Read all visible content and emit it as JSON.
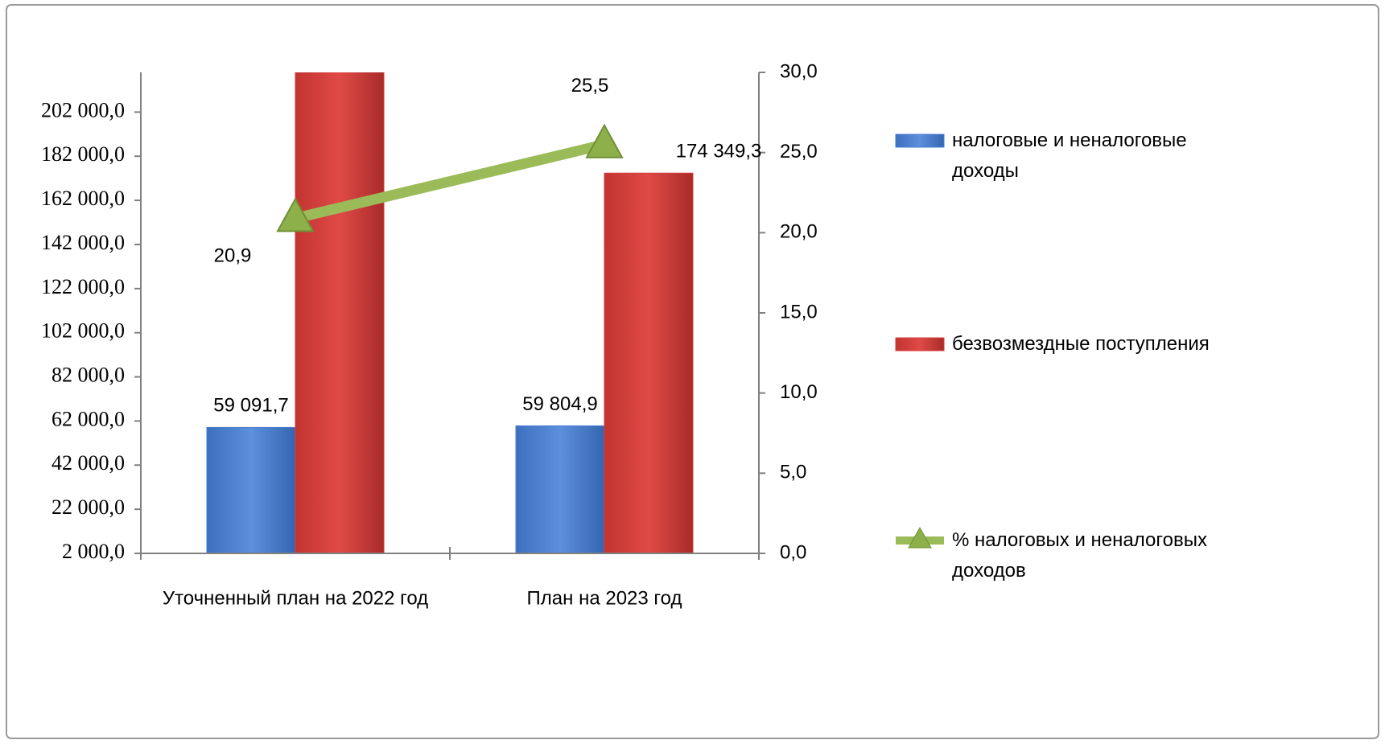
{
  "chart_data": {
    "type": "bar",
    "categories": [
      "Уточненный план на 2022 год",
      "План на 2023 год"
    ],
    "series": [
      {
        "name": "налоговые и неналоговые доходы",
        "color": "#4a7fd0",
        "type": "bar",
        "values": [
          59091.7,
          59804.9
        ],
        "value_labels": [
          "59 091,7",
          "59 804,9"
        ]
      },
      {
        "name": "безвозмездные поступления",
        "color": "#d53d3a",
        "type": "bar",
        "values": [
          223643.6,
          174349.3
        ],
        "value_labels": [
          null,
          "174 349,3"
        ]
      },
      {
        "name": "% налоговых и неналоговых доходов",
        "color": "#9bbb59",
        "type": "line",
        "axis": "y2",
        "values": [
          20.9,
          25.5
        ],
        "value_labels": [
          "20,9",
          "25,5"
        ]
      }
    ],
    "ylim": [
      2000,
      220000
    ],
    "yticks": [
      {
        "value": 2000,
        "label": "2 000,0"
      },
      {
        "value": 22000,
        "label": "22 000,0"
      },
      {
        "value": 42000,
        "label": "42 000,0"
      },
      {
        "value": 62000,
        "label": "62 000,0"
      },
      {
        "value": 82000,
        "label": "82 000,0"
      },
      {
        "value": 102000,
        "label": "102 000,0"
      },
      {
        "value": 122000,
        "label": "122 000,0"
      },
      {
        "value": 142000,
        "label": "142 000,0"
      },
      {
        "value": 162000,
        "label": "162 000,0"
      },
      {
        "value": 182000,
        "label": "182 000,0"
      },
      {
        "value": 202000,
        "label": "202 000,0"
      }
    ],
    "y2lim": [
      0,
      30
    ],
    "y2ticks": [
      {
        "value": 0,
        "label": "0,0"
      },
      {
        "value": 5,
        "label": "5,0"
      },
      {
        "value": 10,
        "label": "10,0"
      },
      {
        "value": 15,
        "label": "15,0"
      },
      {
        "value": 20,
        "label": "20,0"
      },
      {
        "value": 25,
        "label": "25,0"
      },
      {
        "value": 30,
        "label": "30,0"
      }
    ],
    "legend": "right"
  }
}
